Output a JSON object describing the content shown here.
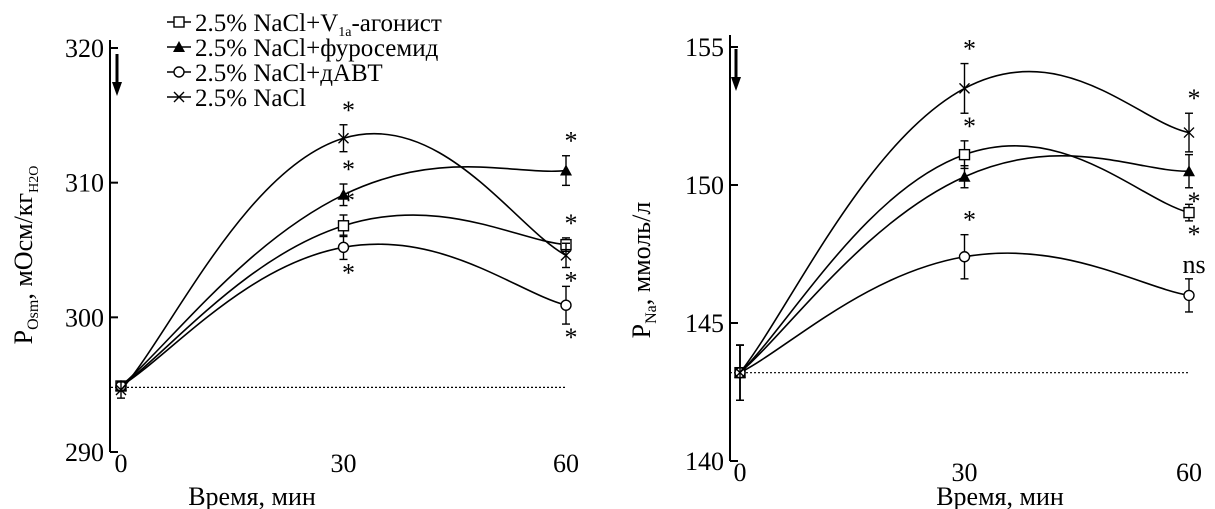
{
  "legend": [
    {
      "label": "2.5% NaCl+V",
      "sub": "1a",
      "suffix": "-агонист",
      "marker": "square-open"
    },
    {
      "label": "2.5% NaCl+фуросемид",
      "marker": "triangle-filled"
    },
    {
      "label": "2.5% NaCl+дАВТ",
      "marker": "circle-open"
    },
    {
      "label": "2.5% NaCl",
      "marker": "cross"
    }
  ],
  "chart_data": [
    {
      "type": "line",
      "xlabel": "Время, мин",
      "ylabel_main": "P",
      "ylabel_sub": "Osm",
      "ylabel_rest": ", мОсм/кг",
      "ylabel_sub2": "H2O",
      "x": [
        0,
        30,
        60
      ],
      "xticks": [
        "0",
        "30",
        "60"
      ],
      "yticks": [
        "290",
        "300",
        "310",
        "320"
      ],
      "xlim": [
        0,
        60
      ],
      "ylim": [
        290,
        320
      ],
      "baseline": 294.8,
      "arrow_at_x": 0,
      "series": [
        {
          "name": "2.5% NaCl+V1a-агонист",
          "marker": "square-open",
          "values": [
            294.9,
            306.8,
            305.4
          ],
          "err": [
            0.3,
            0.8,
            0.5
          ],
          "annotations": [
            "",
            "*",
            "*"
          ],
          "ann_pos": [
            "",
            "above",
            "above"
          ]
        },
        {
          "name": "2.5% NaCl+фуросемид",
          "marker": "triangle-filled",
          "values": [
            294.9,
            309.1,
            310.9
          ],
          "err": [
            0.3,
            0.8,
            1.1
          ],
          "annotations": [
            "",
            "*",
            "*"
          ],
          "ann_pos": [
            "",
            "above",
            "above"
          ]
        },
        {
          "name": "2.5% NaCl+дАВТ",
          "marker": "circle-open",
          "values": [
            294.9,
            305.2,
            300.9
          ],
          "err": [
            0.3,
            0.9,
            1.4
          ],
          "annotations": [
            "",
            "*",
            "*"
          ],
          "ann_pos": [
            "",
            "below",
            "below"
          ]
        },
        {
          "name": "2.5% NaCl",
          "marker": "cross",
          "values": [
            294.6,
            313.3,
            304.6
          ],
          "err": [
            0.6,
            1.0,
            0.9
          ],
          "annotations": [
            "",
            "*",
            "*"
          ],
          "ann_pos": [
            "",
            "above",
            "below"
          ]
        }
      ]
    },
    {
      "type": "line",
      "xlabel": "Время, мин",
      "ylabel_main": "P",
      "ylabel_sub": "Na",
      "ylabel_rest": ", ммоль/л",
      "x": [
        0,
        30,
        60
      ],
      "xticks": [
        "0",
        "30",
        "60"
      ],
      "yticks": [
        "140",
        "145",
        "150",
        "155"
      ],
      "xlim": [
        0,
        60
      ],
      "ylim": [
        140,
        155
      ],
      "baseline": 143.2,
      "arrow_at_x": 0,
      "series": [
        {
          "name": "2.5% NaCl+V1a-агонист",
          "marker": "square-open",
          "values": [
            143.2,
            151.1,
            149.0
          ],
          "err": [
            1.0,
            0.5,
            0.3
          ],
          "annotations": [
            "",
            "*",
            "*"
          ],
          "ann_pos": [
            "",
            "above",
            "below"
          ]
        },
        {
          "name": "2.5% NaCl+фуросемид",
          "marker": "triangle-filled",
          "values": [
            143.2,
            150.3,
            150.5
          ],
          "err": [
            1.0,
            0.4,
            0.6
          ],
          "annotations": [
            "",
            "",
            "*"
          ],
          "ann_pos": [
            "",
            "",
            "below"
          ]
        },
        {
          "name": "2.5% NaCl+дАВТ",
          "marker": "circle-open",
          "values": [
            143.2,
            147.4,
            146.0
          ],
          "err": [
            1.0,
            0.8,
            0.6
          ],
          "annotations": [
            "",
            "*",
            "ns"
          ],
          "ann_pos": [
            "",
            "above",
            "above"
          ]
        },
        {
          "name": "2.5% NaCl",
          "marker": "cross",
          "values": [
            143.2,
            153.5,
            151.9
          ],
          "err": [
            1.0,
            0.9,
            0.7
          ],
          "annotations": [
            "",
            "*",
            "*"
          ],
          "ann_pos": [
            "",
            "above",
            "above"
          ]
        }
      ]
    }
  ]
}
